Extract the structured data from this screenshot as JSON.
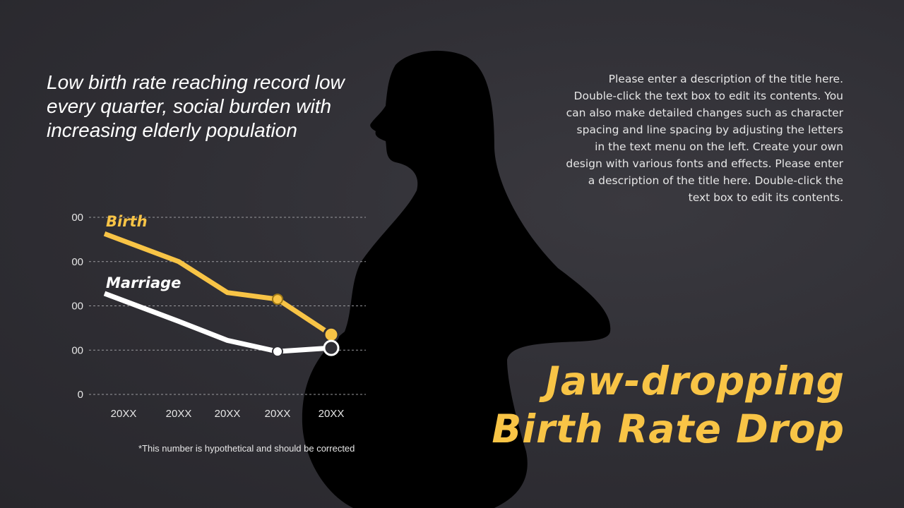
{
  "subtitle": "Low birth rate reaching record low every quarter, social burden with increasing elderly population",
  "description": "Please enter a description of the title here. Double-click the text box to edit its contents. You can also make detailed changes such as character spacing and line spacing by adjusting the letters in the text menu on the left. Create your own design with various fonts and effects. Please enter a description of the title here. Double-click the text box to edit its contents.",
  "title_line1": "Jaw-dropping",
  "title_line2": "Birth Rate Drop",
  "footnote": "*This number is hypothetical and should be corrected",
  "colors": {
    "birth": "#f8c446",
    "marriage": "#ffffff",
    "background": "#2f2e34",
    "silhouette": "#000000"
  },
  "illustration": "pregnant-woman-silhouette",
  "chart_data": {
    "type": "line",
    "categories": [
      "20XX",
      "20XX",
      "20XX",
      "20XX",
      "20XX"
    ],
    "yticks": [
      "00",
      "00",
      "00",
      "00",
      "0"
    ],
    "ylim": [
      0,
      4
    ],
    "grid": true,
    "series": [
      {
        "name": "Birth",
        "color": "#f8c446",
        "values": [
          3.63,
          3.0,
          2.3,
          2.15,
          1.35
        ],
        "marked": [
          3,
          4
        ]
      },
      {
        "name": "Marriage",
        "color": "#ffffff",
        "values": [
          2.28,
          1.65,
          1.22,
          0.97,
          1.05
        ],
        "marked": [
          3,
          4
        ]
      }
    ]
  }
}
